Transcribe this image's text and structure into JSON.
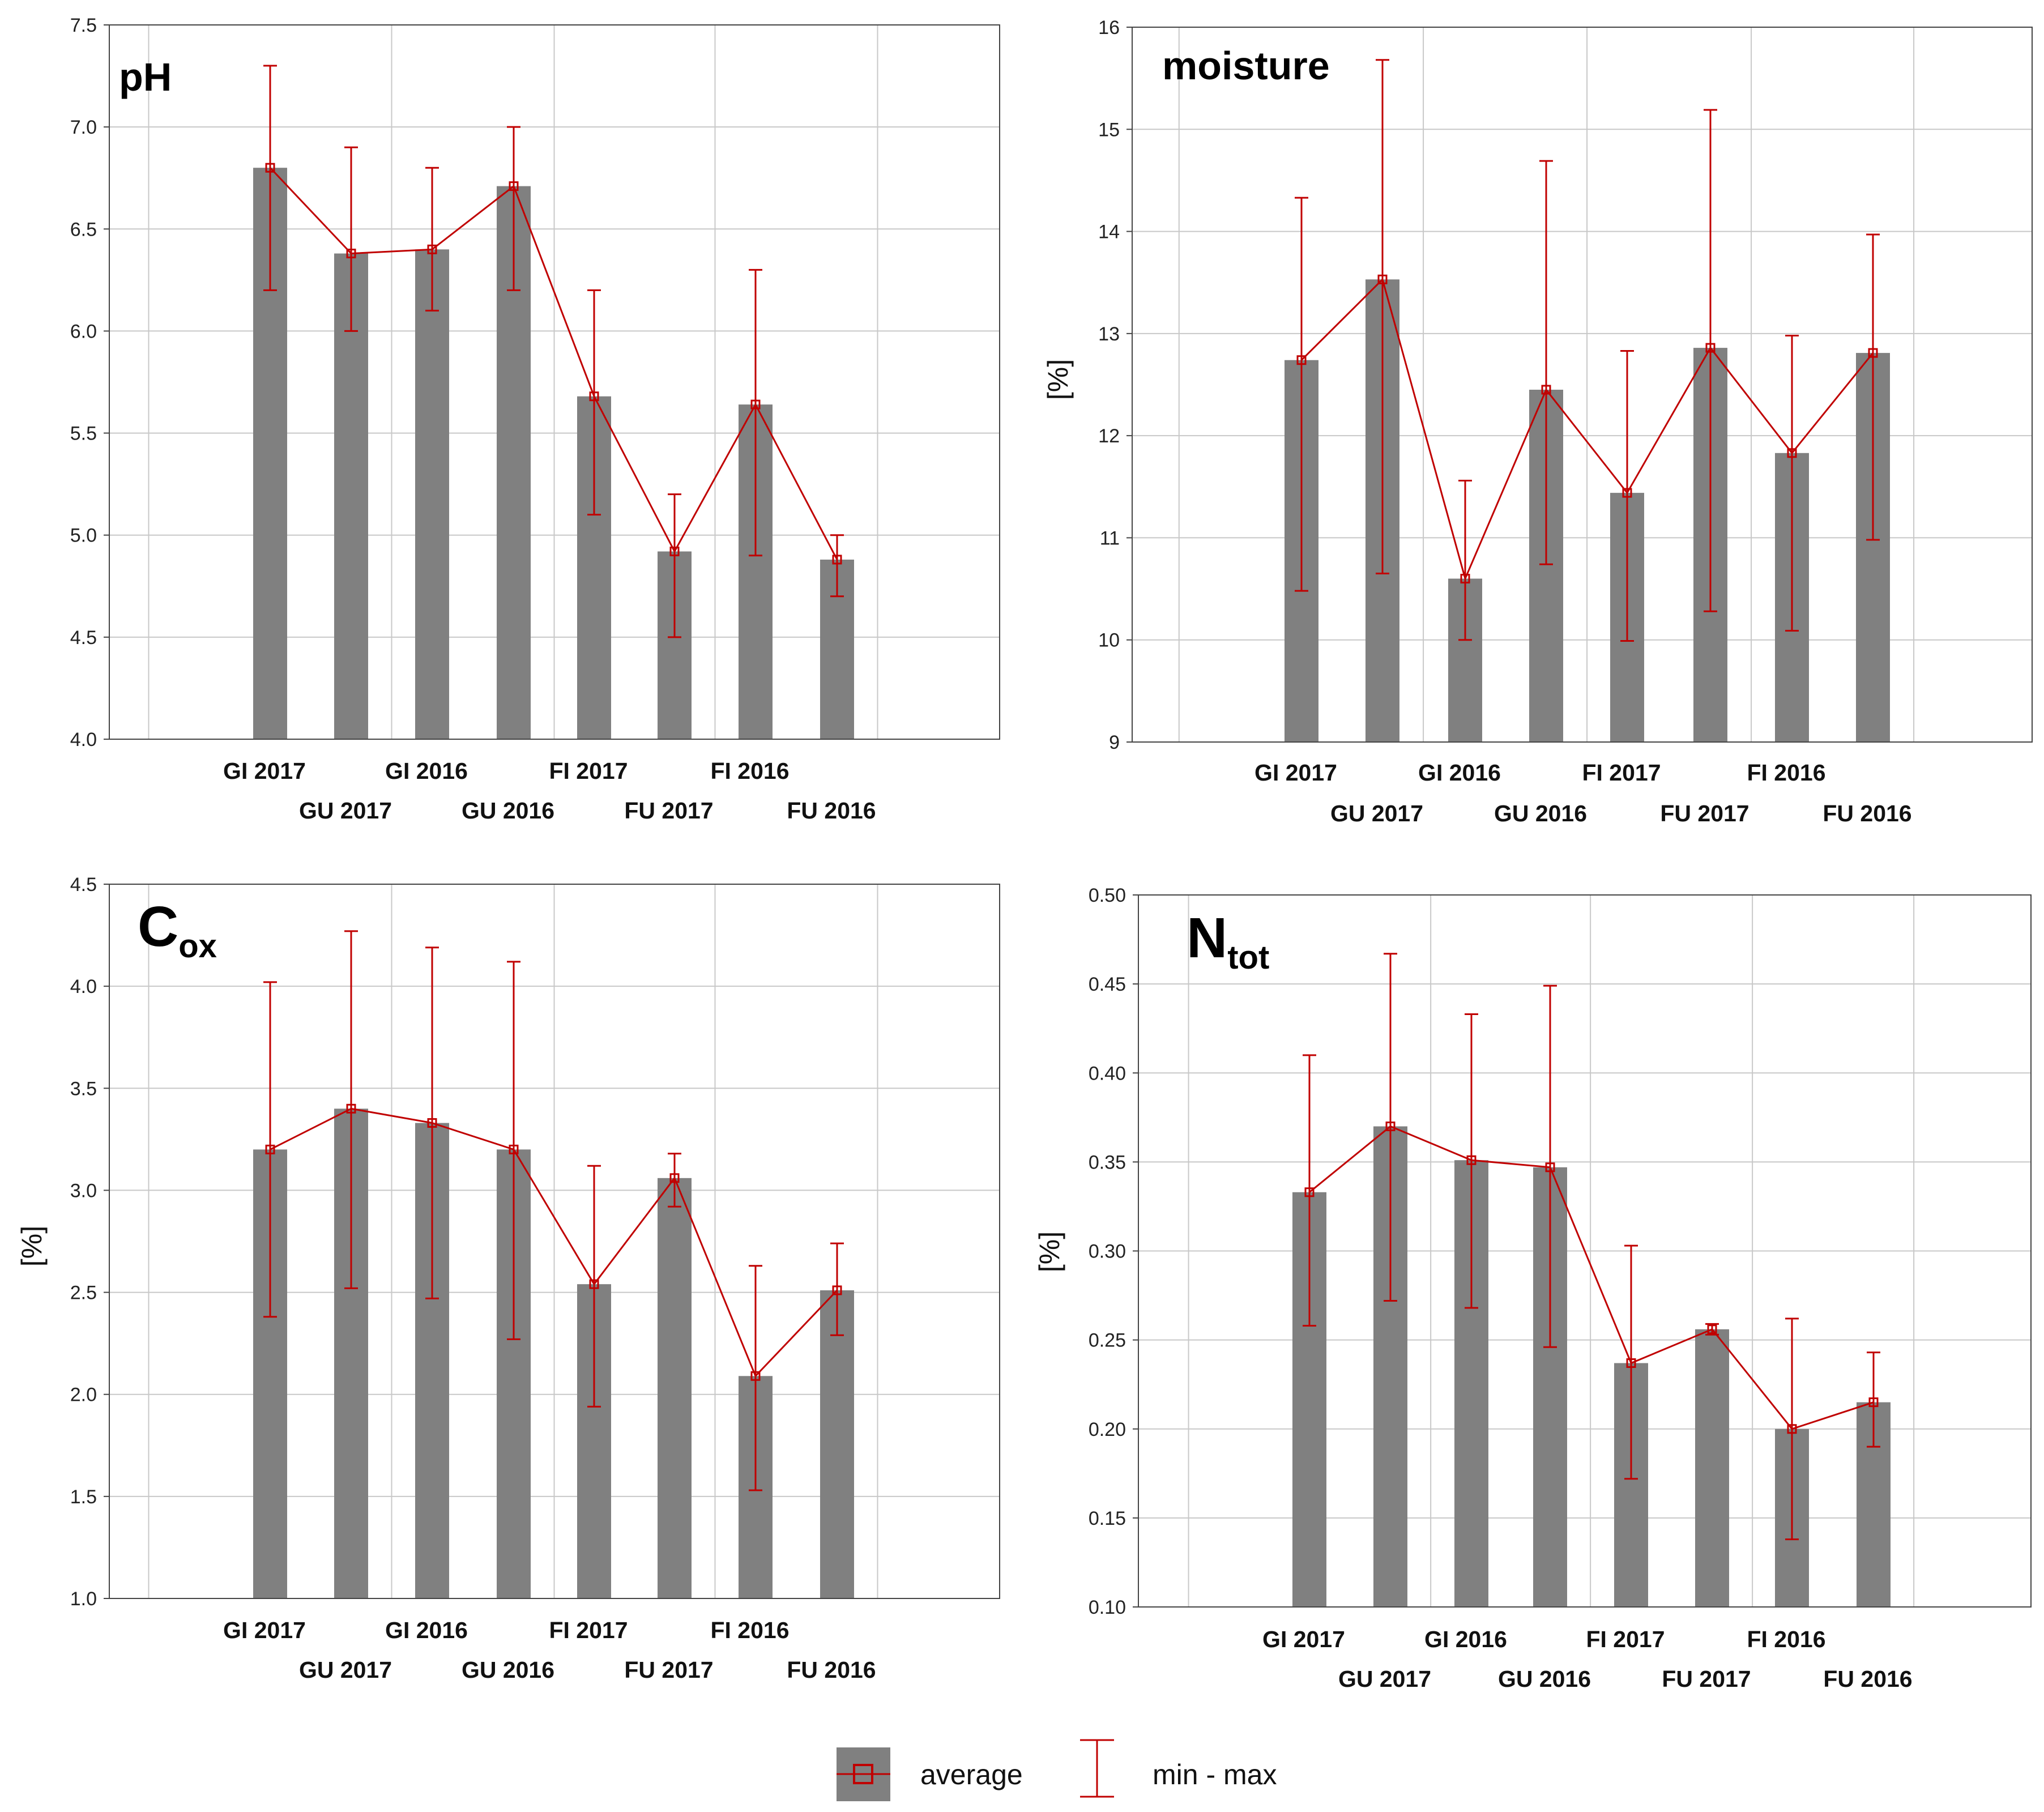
{
  "colors": {
    "bar": "#808080",
    "line": "#c00000",
    "grid": "#c8c8c8",
    "frame": "#444444"
  },
  "chart_data": [
    {
      "type": "bar",
      "title": "pH",
      "title_sub": "",
      "ylabel": "",
      "ylim": [
        4.0,
        7.5
      ],
      "yticks": [
        "4.0",
        "4.5",
        "5.0",
        "5.5",
        "6.0",
        "6.5",
        "7.0",
        "7.5"
      ],
      "grid": true,
      "categories": [
        "GI 2017",
        "GU 2017",
        "GI 2016",
        "GU 2016",
        "FI 2017",
        "FU 2017",
        "FI 2016",
        "FU 2016"
      ],
      "series": [
        {
          "name": "average",
          "values": [
            6.8,
            6.38,
            6.4,
            6.71,
            5.68,
            4.92,
            5.64,
            4.88
          ]
        },
        {
          "name": "min - max",
          "min": [
            6.2,
            6.0,
            6.1,
            6.2,
            5.1,
            4.5,
            4.9,
            4.7
          ],
          "max": [
            7.3,
            6.9,
            6.8,
            7.0,
            6.2,
            5.2,
            6.3,
            5.0
          ]
        }
      ]
    },
    {
      "type": "bar",
      "title": "moisture",
      "title_sub": "",
      "ylabel": "[%]",
      "ylim": [
        9,
        16
      ],
      "yticks": [
        "9",
        "10",
        "11",
        "12",
        "13",
        "14",
        "15",
        "16"
      ],
      "grid": true,
      "categories": [
        "GI 2017",
        "GU 2017",
        "GI 2016",
        "GU 2016",
        "FI 2017",
        "FU 2017",
        "FI 2016",
        "FU 2016"
      ],
      "series": [
        {
          "name": "average",
          "values": [
            12.74,
            13.53,
            10.6,
            12.45,
            11.44,
            12.86,
            11.83,
            12.81
          ]
        },
        {
          "name": "min - max",
          "min": [
            10.48,
            10.65,
            10.0,
            10.74,
            9.99,
            10.28,
            10.09,
            10.98
          ],
          "max": [
            14.33,
            15.68,
            11.56,
            14.69,
            12.83,
            15.19,
            12.98,
            13.97
          ]
        }
      ]
    },
    {
      "type": "bar",
      "title": "C",
      "title_sub": "ox",
      "ylabel": "[%]",
      "ylim": [
        1.0,
        4.5
      ],
      "yticks": [
        "1.0",
        "1.5",
        "2.0",
        "2.5",
        "3.0",
        "3.5",
        "4.0",
        "4.5"
      ],
      "grid": true,
      "categories": [
        "GI 2017",
        "GU 2017",
        "GI 2016",
        "GU 2016",
        "FI 2017",
        "FU 2017",
        "FI 2016",
        "FU 2016"
      ],
      "series": [
        {
          "name": "average",
          "values": [
            3.2,
            3.4,
            3.33,
            3.2,
            2.54,
            3.06,
            2.09,
            2.51
          ]
        },
        {
          "name": "min - max",
          "min": [
            2.38,
            2.52,
            2.47,
            2.27,
            1.94,
            2.92,
            1.53,
            2.29
          ],
          "max": [
            4.02,
            4.27,
            4.19,
            4.12,
            3.12,
            3.18,
            2.63,
            2.74
          ]
        }
      ]
    },
    {
      "type": "bar",
      "title": "N",
      "title_sub": "tot",
      "ylabel": "[%]",
      "ylim": [
        0.1,
        0.5
      ],
      "yticks": [
        "0.10",
        "0.15",
        "0.20",
        "0.25",
        "0.30",
        "0.35",
        "0.40",
        "0.45",
        "0.50"
      ],
      "grid": true,
      "categories": [
        "GI 2017",
        "GU 2017",
        "GI 2016",
        "GU 2016",
        "FI 2017",
        "FU 2017",
        "FI 2016",
        "FU 2016"
      ],
      "series": [
        {
          "name": "average",
          "values": [
            0.333,
            0.37,
            0.351,
            0.347,
            0.237,
            0.256,
            0.2,
            0.215
          ]
        },
        {
          "name": "min - max",
          "min": [
            0.258,
            0.272,
            0.268,
            0.246,
            0.172,
            0.253,
            0.138,
            0.19
          ],
          "max": [
            0.41,
            0.467,
            0.433,
            0.449,
            0.303,
            0.259,
            0.262,
            0.243
          ]
        }
      ]
    }
  ],
  "legend": {
    "average_label": "average",
    "minmax_label": "min - max"
  }
}
